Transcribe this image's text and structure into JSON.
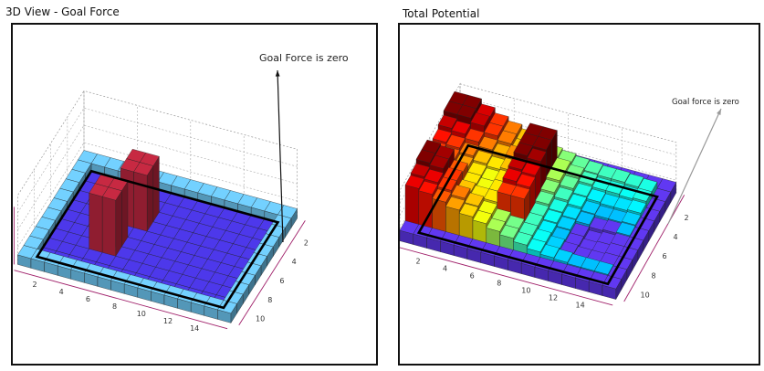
{
  "panels": [
    {
      "title": "3D View - Goal Force"
    },
    {
      "title": "Total Potential"
    }
  ],
  "chart_data": [
    {
      "type": "bar3d",
      "title": "3D View - Goal Force",
      "annotation": "Goal Force is zero",
      "x_ticks": [
        "2",
        "4",
        "6",
        "8",
        "10",
        "12",
        "14"
      ],
      "y_ticks": [
        "2",
        "4",
        "6",
        "8",
        "10"
      ],
      "z_ticks": [
        "0",
        "2",
        "4",
        "6"
      ],
      "grid": true,
      "colormap": "jet",
      "values": [
        [
          1,
          1,
          1,
          1,
          1,
          1,
          1,
          1,
          1,
          1,
          1,
          1,
          1,
          1,
          1,
          1
        ],
        [
          1,
          0,
          0,
          0,
          0,
          0,
          0,
          0,
          0,
          0,
          0,
          0,
          0,
          0,
          0,
          1
        ],
        [
          1,
          0,
          0,
          0,
          0,
          0,
          0,
          0,
          0,
          0,
          0,
          0,
          0,
          0,
          0,
          1
        ],
        [
          1,
          0,
          0,
          0,
          0,
          6,
          6,
          0,
          0,
          0,
          0,
          0,
          0,
          0,
          0,
          1
        ],
        [
          1,
          0,
          0,
          0,
          0,
          6,
          6,
          0,
          0,
          0,
          0,
          0,
          0,
          0,
          0,
          1
        ],
        [
          1,
          0,
          0,
          0,
          0,
          0,
          0,
          0,
          0,
          0,
          0,
          0,
          0,
          0,
          0,
          1
        ],
        [
          1,
          0,
          0,
          0,
          6,
          6,
          0,
          0,
          0,
          0,
          0,
          0,
          0,
          0,
          0,
          1
        ],
        [
          1,
          0,
          0,
          0,
          6,
          6,
          0,
          0,
          0,
          0,
          0,
          0,
          0,
          0,
          0,
          1
        ],
        [
          1,
          0,
          0,
          0,
          0,
          0,
          0,
          0,
          0,
          0,
          0,
          0,
          0,
          0,
          0,
          1
        ],
        [
          1,
          0,
          0,
          0,
          0,
          0,
          0,
          0,
          0,
          0,
          0,
          0,
          0,
          0,
          0,
          1
        ],
        [
          1,
          1,
          1,
          1,
          1,
          1,
          1,
          1,
          1,
          1,
          1,
          1,
          1,
          1,
          1,
          1
        ]
      ]
    },
    {
      "type": "bar3d",
      "title": "Total Potential",
      "annotation": "Goal force is zero",
      "x_ticks": [
        "2",
        "4",
        "6",
        "8",
        "10",
        "12",
        "14"
      ],
      "y_ticks": [
        "2",
        "4",
        "6",
        "8",
        "10"
      ],
      "z_ticks": [
        "2",
        "4"
      ],
      "grid": true,
      "colormap": "jet",
      "values": [
        [
          1,
          1,
          1,
          1,
          1,
          1,
          1,
          1,
          1,
          1,
          1,
          1,
          1,
          1,
          1,
          1
        ],
        [
          5,
          5,
          4.5,
          4,
          3.6,
          3.2,
          2.8,
          2.4,
          2.2,
          2,
          1.9,
          1.8,
          1.8,
          1.7,
          1.6,
          1
        ],
        [
          5,
          5,
          4.6,
          4,
          3.6,
          3.2,
          5,
          5,
          2.4,
          2.1,
          1.8,
          1.6,
          1.6,
          1.5,
          1.6,
          1
        ],
        [
          4.6,
          4.4,
          4,
          3.6,
          3.3,
          3.5,
          5,
          5,
          2.4,
          2,
          1.6,
          1.4,
          1.3,
          1.3,
          1.4,
          1
        ],
        [
          4.2,
          4,
          3.6,
          3.2,
          3,
          3.2,
          5,
          4.8,
          2.2,
          1.8,
          1.5,
          1.2,
          1.1,
          1.1,
          1.2,
          1
        ],
        [
          4,
          3.8,
          3.4,
          3,
          2.8,
          3,
          4.6,
          4.4,
          2,
          1.6,
          1.3,
          1.1,
          0.9,
          1,
          1.1,
          1
        ],
        [
          5,
          4.8,
          3.8,
          3,
          2.8,
          3,
          4.4,
          4.2,
          1.8,
          1.5,
          1.2,
          0.9,
          0.6,
          0.8,
          1,
          1
        ],
        [
          5,
          4.8,
          4,
          3.2,
          3,
          3,
          4,
          4,
          1.8,
          1.4,
          1.1,
          0.9,
          0.7,
          0.8,
          1,
          1
        ],
        [
          4.6,
          4.4,
          4,
          3.6,
          3.2,
          2.8,
          2.4,
          2.1,
          1.8,
          1.5,
          1.2,
          1,
          0.9,
          0.9,
          1,
          1
        ],
        [
          4.4,
          4.2,
          3.8,
          3.4,
          3.1,
          2.8,
          2.4,
          2.1,
          1.8,
          1.5,
          1.3,
          1.2,
          1.1,
          1.1,
          1.1,
          1
        ],
        [
          1,
          1,
          1,
          1,
          1,
          1,
          1,
          1,
          1,
          1,
          1,
          1,
          1,
          1,
          1,
          1
        ]
      ]
    }
  ]
}
